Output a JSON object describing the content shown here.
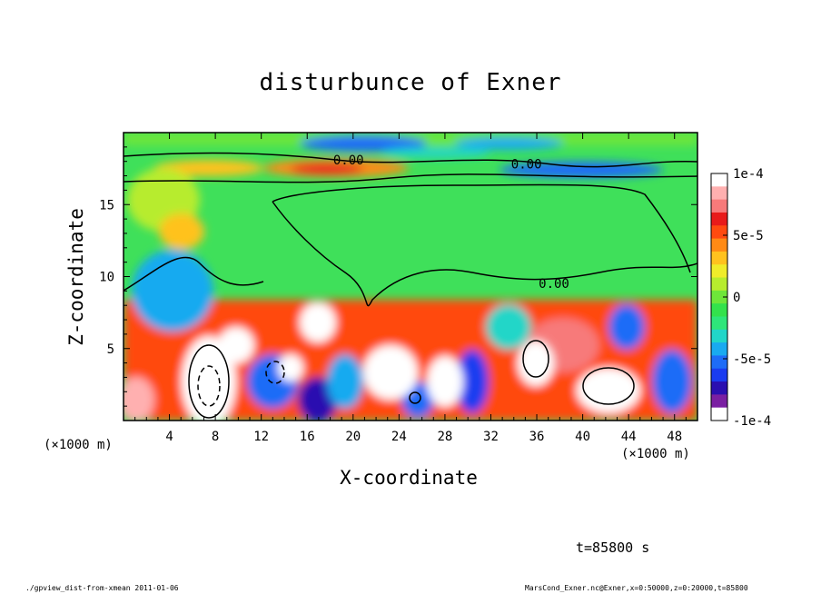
{
  "chart_data": {
    "type": "heatmap",
    "title": "disturbunce of Exner",
    "xlabel": "X-coordinate",
    "ylabel": "Z-coordinate",
    "x_unit_left": "(×1000 m)",
    "x_unit_right": "(×1000 m)",
    "xlim": [
      0,
      50
    ],
    "ylim": [
      0,
      20
    ],
    "x_ticks": [
      "4",
      "8",
      "12",
      "16",
      "20",
      "24",
      "28",
      "32",
      "36",
      "40",
      "44",
      "48"
    ],
    "x_tick_values": [
      4,
      8,
      12,
      16,
      20,
      24,
      28,
      32,
      36,
      40,
      44,
      48
    ],
    "y_ticks": [
      "5",
      "10",
      "15"
    ],
    "y_tick_values": [
      5,
      10,
      15
    ],
    "colorbar": {
      "min": -0.0001,
      "max": 0.0001,
      "labels": [
        "1e-4",
        "5e-5",
        "0",
        "-5e-5",
        "-1e-4"
      ],
      "label_values": [
        0.0001,
        5e-05,
        0,
        -5e-05,
        -0.0001
      ],
      "colors": [
        "#ffffff",
        "#7a1fa2",
        "#2a0fb0",
        "#1a3cf0",
        "#1e6cf7",
        "#19aaf0",
        "#21d6c8",
        "#2ee67a",
        "#33e24c",
        "#6ee63a",
        "#b7ec2e",
        "#f0ec2a",
        "#ffc21e",
        "#ff8a15",
        "#ff4a10",
        "#e81a1a",
        "#f77a7a",
        "#ffb0b0",
        "#ffffff"
      ]
    },
    "contour_labels": [
      "0.00",
      "0.00",
      "0.00"
    ],
    "contour_label_positions": [
      [
        19.6,
        17.8
      ],
      [
        35.1,
        17.5
      ],
      [
        37.5,
        9.2
      ]
    ]
  },
  "annotation_time": "t=85800 s",
  "footer_left": "./gpview_dist-from-xmean   2011-01-06",
  "footer_right": "MarsCond_Exner.nc@Exner,x=0:50000,z=0:20000,t=85800"
}
